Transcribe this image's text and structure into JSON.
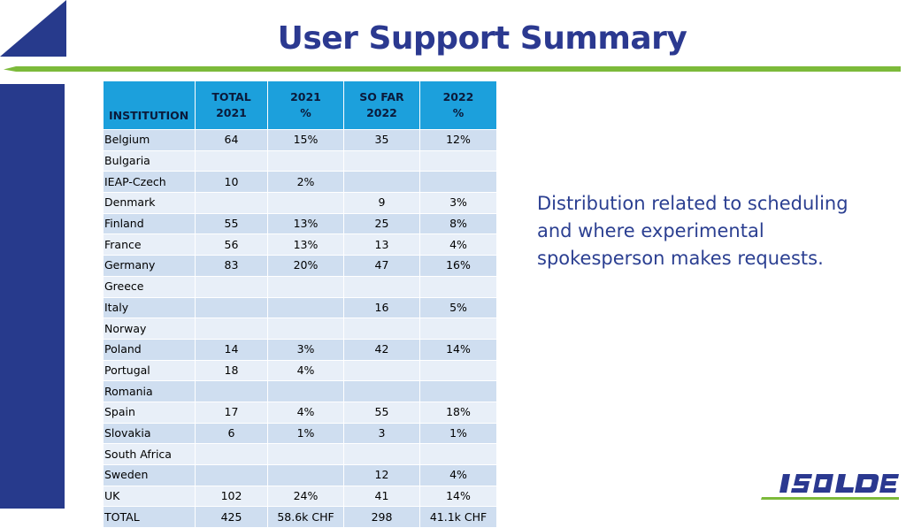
{
  "slide": {
    "title": "User Support Summary",
    "note": "Distribution related to scheduling and where experimental spokesperson makes requests.",
    "logo_text": "ISOLDE",
    "colors": {
      "title": "#2b3990",
      "accent_navy": "#273a8c",
      "accent_green": "#7cba3a",
      "header_fill": "#1ca0dc",
      "row_odd": "#cfdef0",
      "row_even": "#e8eff8"
    }
  },
  "table": {
    "headers": [
      {
        "line1": "",
        "line2": "INSTITUTION"
      },
      {
        "line1": "TOTAL",
        "line2": "2021"
      },
      {
        "line1": "2021",
        "line2": "%"
      },
      {
        "line1": "SO FAR",
        "line2": "2022"
      },
      {
        "line1": "2022",
        "line2": "%"
      }
    ],
    "rows": [
      [
        "Belgium",
        "64",
        "15%",
        "35",
        "12%"
      ],
      [
        "Bulgaria",
        "",
        "",
        "",
        ""
      ],
      [
        "IEAP-Czech",
        "10",
        "2%",
        "",
        ""
      ],
      [
        "Denmark",
        "",
        "",
        "9",
        "3%"
      ],
      [
        "Finland",
        "55",
        "13%",
        "25",
        "8%"
      ],
      [
        "France",
        "56",
        "13%",
        "13",
        "4%"
      ],
      [
        "Germany",
        "83",
        "20%",
        "47",
        "16%"
      ],
      [
        "Greece",
        "",
        "",
        "",
        ""
      ],
      [
        "Italy",
        "",
        "",
        "16",
        "5%"
      ],
      [
        "Norway",
        "",
        "",
        "",
        ""
      ],
      [
        "Poland",
        "14",
        "3%",
        "42",
        "14%"
      ],
      [
        "Portugal",
        "18",
        "4%",
        "",
        ""
      ],
      [
        "Romania",
        "",
        "",
        "",
        ""
      ],
      [
        "Spain",
        "17",
        "4%",
        "55",
        "18%"
      ],
      [
        "Slovakia",
        "6",
        "1%",
        "3",
        "1%"
      ],
      [
        "South Africa",
        "",
        "",
        "",
        ""
      ],
      [
        "Sweden",
        "",
        "",
        "12",
        "4%"
      ],
      [
        "UK",
        "102",
        "24%",
        "41",
        "14%"
      ],
      [
        "TOTAL",
        "425",
        "58.6k CHF",
        "298",
        "41.1k CHF"
      ]
    ]
  }
}
